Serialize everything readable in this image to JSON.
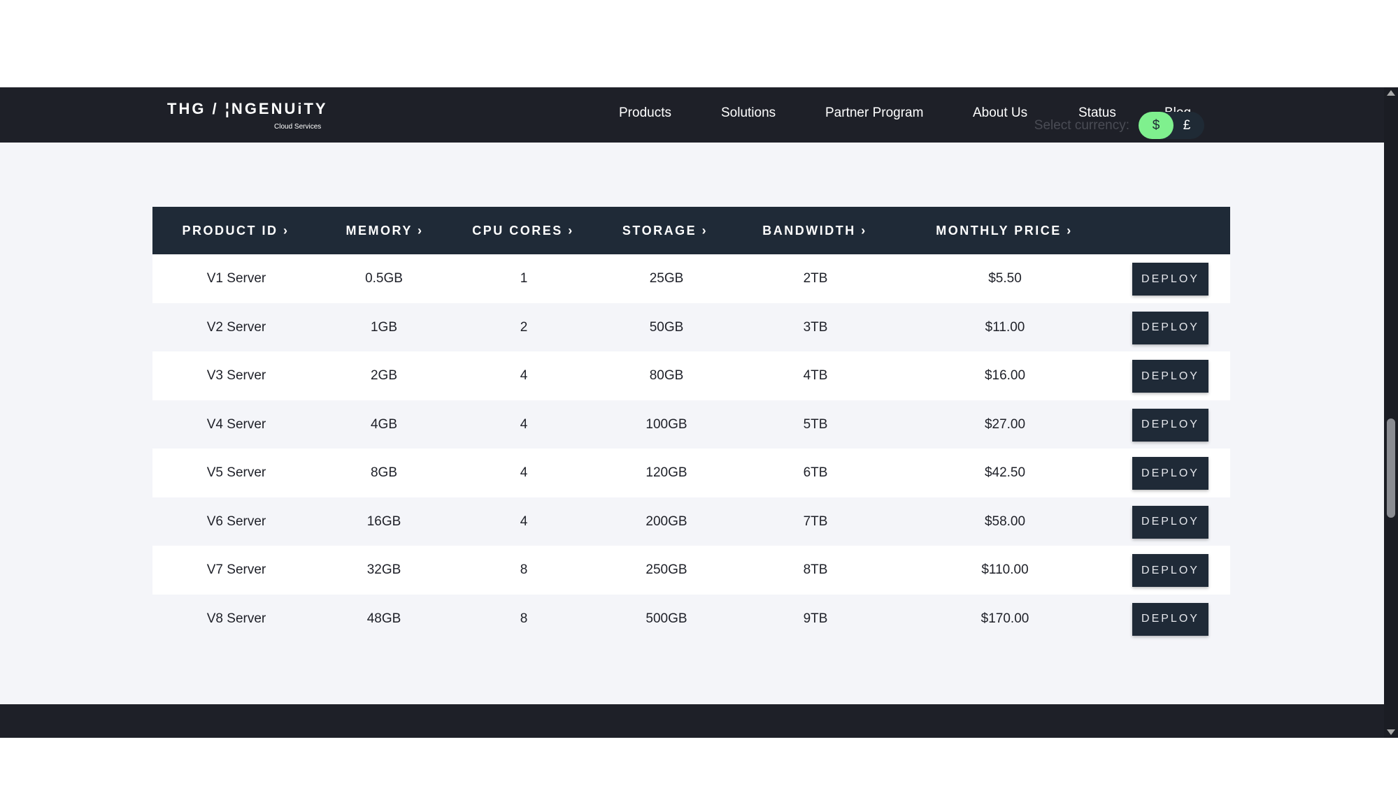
{
  "brand": {
    "logo_main": "THG / ¦NGENUiTY",
    "logo_sub": "Cloud Services"
  },
  "nav": [
    {
      "label": "Products"
    },
    {
      "label": "Solutions"
    },
    {
      "label": "Partner Program"
    },
    {
      "label": "About Us"
    },
    {
      "label": "Status"
    },
    {
      "label": "Blog"
    }
  ],
  "currency": {
    "label": "Select currency:",
    "options": [
      "$",
      "£"
    ],
    "selected": "$"
  },
  "table": {
    "headers": [
      "PRODUCT ID ›",
      "MEMORY ›",
      "CPU CORES ›",
      "STORAGE ›",
      "BANDWIDTH ›",
      "MONTHLY PRICE ›"
    ],
    "deploy_label": "DEPLOY",
    "rows": [
      [
        "V1 Server",
        "0.5GB",
        "1",
        "25GB",
        "2TB",
        "$5.50"
      ],
      [
        "V2 Server",
        "1GB",
        "2",
        "50GB",
        "3TB",
        "$11.00"
      ],
      [
        "V3 Server",
        "2GB",
        "4",
        "80GB",
        "4TB",
        "$16.00"
      ],
      [
        "V4 Server",
        "4GB",
        "4",
        "100GB",
        "5TB",
        "$27.00"
      ],
      [
        "V5 Server",
        "8GB",
        "4",
        "120GB",
        "6TB",
        "$42.50"
      ],
      [
        "V6 Server",
        "16GB",
        "4",
        "200GB",
        "7TB",
        "$58.00"
      ],
      [
        "V7 Server",
        "32GB",
        "8",
        "250GB",
        "8TB",
        "$110.00"
      ],
      [
        "V8 Server",
        "48GB",
        "8",
        "500GB",
        "9TB",
        "$170.00"
      ]
    ]
  },
  "colors": {
    "nav_bg": "#1e2028",
    "table_header_bg": "#1f2a37",
    "toggle_active": "#7ff08e",
    "page_bg": "#f4f5f9"
  }
}
